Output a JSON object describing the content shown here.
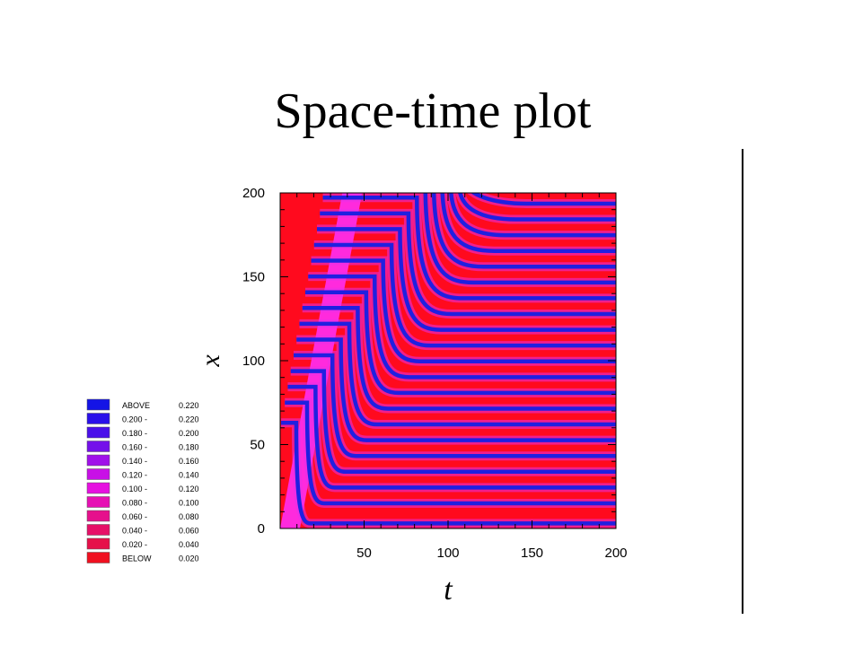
{
  "slide": {
    "title": "Space-time plot"
  },
  "chart_data": {
    "type": "heatmap",
    "xlabel": "t",
    "ylabel": "x",
    "xlim": [
      0,
      200
    ],
    "ylim": [
      0,
      200
    ],
    "xticks": [
      "50",
      "100",
      "150",
      "200"
    ],
    "yticks": [
      "0",
      "50",
      "100",
      "150",
      "200"
    ],
    "field": {
      "front_speed_x_per_t": 5.4,
      "stripe_spacing_x": 9.4,
      "bottom_band_x": 3,
      "first_stripe_x": 15,
      "stripe_count": 20
    },
    "legend": {
      "placement": "left",
      "entries": [
        {
          "label": "ABOVE",
          "value": "0.220",
          "color": "#1414e6"
        },
        {
          "label": "0.200 -",
          "value": "0.220",
          "color": "#2a10ea"
        },
        {
          "label": "0.180 -",
          "value": "0.200",
          "color": "#4a10ea"
        },
        {
          "label": "0.160 -",
          "value": "0.180",
          "color": "#7410ea"
        },
        {
          "label": "0.140 -",
          "value": "0.160",
          "color": "#a010ea"
        },
        {
          "label": "0.120 -",
          "value": "0.140",
          "color": "#c810e6"
        },
        {
          "label": "0.100 -",
          "value": "0.120",
          "color": "#e610e0"
        },
        {
          "label": "0.080 -",
          "value": "0.100",
          "color": "#e610b4"
        },
        {
          "label": "0.060 -",
          "value": "0.080",
          "color": "#e6108c"
        },
        {
          "label": "0.040 -",
          "value": "0.060",
          "color": "#e61068"
        },
        {
          "label": "0.020 -",
          "value": "0.040",
          "color": "#e6104a"
        },
        {
          "label": "BELOW",
          "value": "0.020",
          "color": "#f01020"
        }
      ]
    },
    "colors": {
      "background": "#ff0a1e",
      "stripe_core": "#2020e0",
      "stripe_edge": "#e830e8",
      "front_band": "#ff30ff"
    }
  }
}
